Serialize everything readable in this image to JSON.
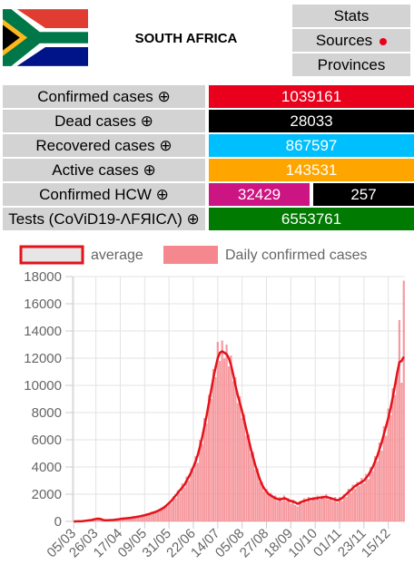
{
  "header": {
    "title": "SOUTH AFRICA"
  },
  "nav": [
    "Stats",
    "Sources",
    "Provinces"
  ],
  "stats": {
    "rows": [
      {
        "label": "Confirmed cases ⊕",
        "values": [
          1039161
        ],
        "colors": [
          "#e8001c"
        ]
      },
      {
        "label": "Dead cases ⊕",
        "values": [
          28033
        ],
        "colors": [
          "#000000"
        ]
      },
      {
        "label": "Recovered cases ⊕",
        "values": [
          867597
        ],
        "colors": [
          "#00bfff"
        ]
      },
      {
        "label": "Active cases ⊕",
        "values": [
          143531
        ],
        "colors": [
          "#ffa500"
        ]
      },
      {
        "label": "Confirmed HCW ⊕",
        "values": [
          32429,
          257
        ],
        "colors": [
          "#cc1483",
          "#000000"
        ]
      },
      {
        "label": "Tests (CoViD19-ΛFЯICΛ) ⊕",
        "values": [
          6553761
        ],
        "colors": [
          "#007a00"
        ]
      }
    ]
  },
  "chart_data": {
    "type": "bar",
    "categories": [
      "05/03",
      null,
      null,
      null,
      null,
      null,
      null,
      null,
      null,
      null,
      "26/03",
      null,
      null,
      null,
      null,
      null,
      null,
      null,
      null,
      null,
      null,
      "17/04",
      null,
      null,
      null,
      null,
      null,
      null,
      null,
      null,
      null,
      null,
      "09/05",
      null,
      null,
      null,
      null,
      null,
      null,
      null,
      null,
      null,
      null,
      "31/05",
      null,
      null,
      null,
      null,
      null,
      null,
      null,
      null,
      null,
      null,
      "22/06",
      null,
      null,
      null,
      null,
      null,
      null,
      null,
      null,
      null,
      null,
      "14/07",
      null,
      null,
      null,
      null,
      null,
      null,
      null,
      null,
      null,
      null,
      "05/08",
      null,
      null,
      null,
      null,
      null,
      null,
      null,
      null,
      null,
      null,
      "27/08",
      null,
      null,
      null,
      null,
      null,
      null,
      null,
      null,
      null,
      null,
      "18/09",
      null,
      null,
      null,
      null,
      null,
      null,
      null,
      null,
      null,
      null,
      "10/10",
      null,
      null,
      null,
      null,
      null,
      null,
      null,
      null,
      null,
      null,
      "01/11",
      null,
      null,
      null,
      null,
      null,
      null,
      null,
      null,
      null,
      null,
      "23/11",
      null,
      null,
      null,
      null,
      null,
      null,
      null,
      null,
      null,
      null,
      "15/12",
      null,
      null,
      null,
      null,
      null,
      null,
      null
    ],
    "series": [
      {
        "name": "average",
        "type": "line",
        "color": "#e3131b",
        "values": [
          1,
          2,
          5,
          10,
          20,
          40,
          60,
          80,
          100,
          140,
          180,
          200,
          180,
          120,
          80,
          80,
          90,
          100,
          110,
          130,
          150,
          180,
          200,
          220,
          230,
          250,
          270,
          300,
          320,
          350,
          380,
          420,
          450,
          500,
          540,
          600,
          650,
          700,
          780,
          850,
          950,
          1050,
          1200,
          1350,
          1500,
          1700,
          1900,
          2100,
          2300,
          2500,
          2700,
          3000,
          3300,
          3600,
          4000,
          4400,
          4900,
          5500,
          6200,
          7000,
          7800,
          8700,
          9600,
          10500,
          11300,
          12000,
          12400,
          12500,
          12400,
          12300,
          12000,
          11500,
          10800,
          10000,
          9300,
          8700,
          8100,
          7400,
          6700,
          6000,
          5300,
          4700,
          4100,
          3600,
          3100,
          2700,
          2400,
          2200,
          2000,
          1900,
          1800,
          1700,
          1650,
          1600,
          1650,
          1700,
          1650,
          1550,
          1500,
          1450,
          1400,
          1300,
          1350,
          1450,
          1500,
          1550,
          1600,
          1650,
          1650,
          1700,
          1700,
          1750,
          1750,
          1800,
          1800,
          1750,
          1700,
          1650,
          1600,
          1550,
          1600,
          1700,
          1850,
          2000,
          2150,
          2300,
          2450,
          2600,
          2700,
          2800,
          2900,
          3000,
          3200,
          3400,
          3700,
          4000,
          4400,
          4800,
          5300,
          5800,
          6400,
          7000,
          7600,
          8300,
          9100,
          10000,
          10900,
          11700,
          11800,
          12100
        ]
      },
      {
        "name": "Daily confirmed cases",
        "type": "bar",
        "color": "#f4888e",
        "values": [
          0,
          2,
          4,
          16,
          24,
          38,
          70,
          60,
          120,
          130,
          200,
          240,
          150,
          90,
          70,
          100,
          80,
          130,
          90,
          160,
          140,
          220,
          180,
          260,
          210,
          300,
          240,
          350,
          290,
          410,
          330,
          500,
          420,
          560,
          480,
          700,
          600,
          780,
          720,
          950,
          870,
          1150,
          1100,
          1400,
          1350,
          1850,
          1700,
          2300,
          2100,
          2800,
          2500,
          3300,
          3000,
          3900,
          3700,
          4800,
          4300,
          6000,
          5700,
          7600,
          7200,
          9300,
          9000,
          11200,
          10600,
          13200,
          11800,
          13300,
          12000,
          13000,
          11400,
          12200,
          10300,
          10600,
          8700,
          9200,
          7600,
          7900,
          6300,
          6400,
          5000,
          5100,
          3800,
          3900,
          2900,
          2900,
          2200,
          2400,
          1900,
          2100,
          1700,
          1900,
          1500,
          1800,
          1500,
          1900,
          1500,
          1700,
          1300,
          1600,
          1200,
          1100,
          1500,
          1300,
          1700,
          1400,
          1800,
          1500,
          1800,
          1600,
          1900,
          1600,
          1900,
          1700,
          2000,
          1600,
          1800,
          1500,
          1800,
          1400,
          1800,
          1500,
          2000,
          1800,
          2400,
          2100,
          2700,
          2400,
          2900,
          2600,
          3200,
          2800,
          3500,
          3100,
          4000,
          3700,
          4800,
          4400,
          5800,
          5200,
          7000,
          6300,
          8300,
          7800,
          9800,
          9300,
          11000,
          14800,
          10200,
          17700
        ]
      }
    ],
    "ylim": [
      0,
      18000
    ],
    "yticks": [
      0,
      2000,
      4000,
      6000,
      8000,
      10000,
      12000,
      14000,
      16000,
      18000
    ],
    "grid": true
  }
}
